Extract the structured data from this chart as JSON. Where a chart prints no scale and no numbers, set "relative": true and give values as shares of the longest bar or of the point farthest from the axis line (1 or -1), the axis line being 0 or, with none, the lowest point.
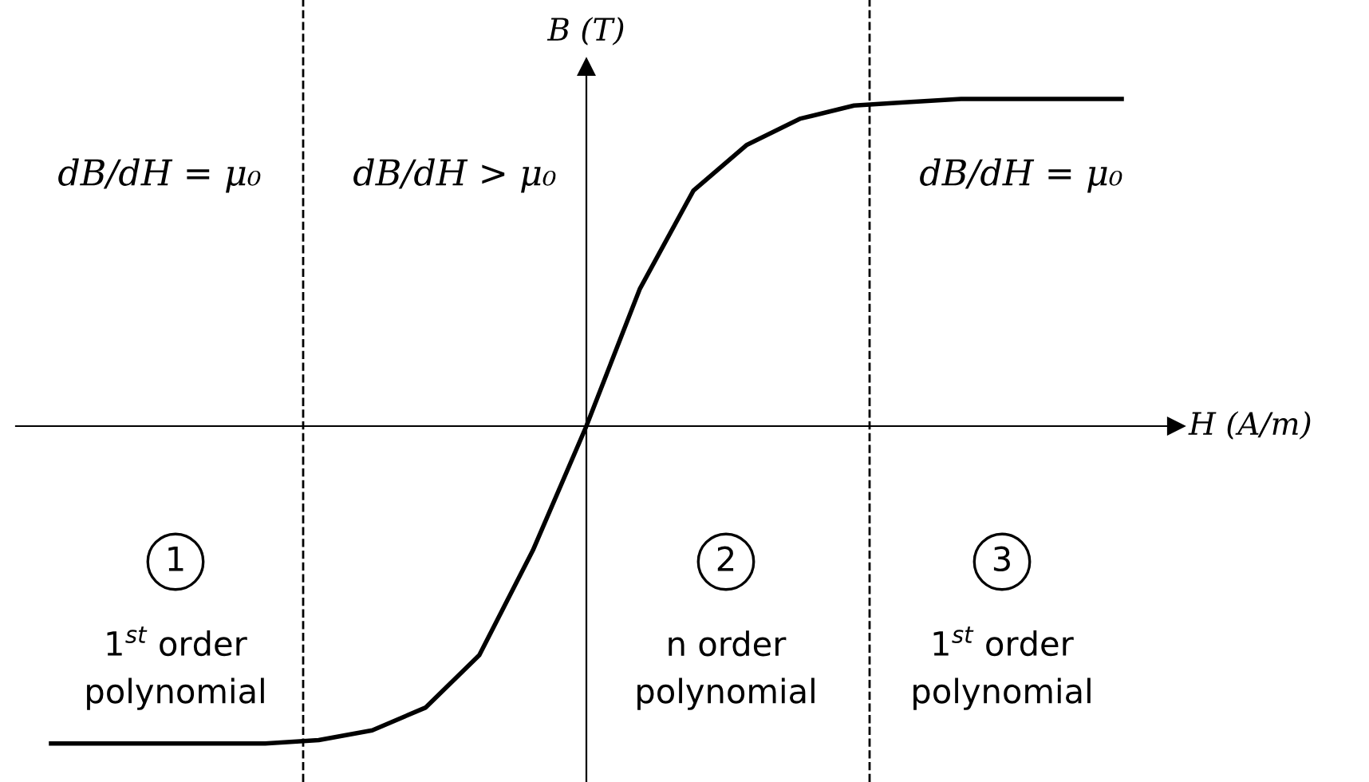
{
  "chart_data": {
    "type": "line",
    "relative": true,
    "xlabel": "H (A/m)",
    "ylabel": "B (T)",
    "marker": "none",
    "line_style": "solid",
    "categories": [
      null,
      null,
      null,
      null,
      null,
      null,
      null,
      null,
      null,
      null,
      null,
      null,
      null,
      null,
      null,
      null,
      null,
      null,
      null,
      null,
      null
    ],
    "series": [
      {
        "color": "#000000",
        "values": [
          -0.97,
          -0.97,
          -0.97,
          -0.97,
          -0.97,
          -0.96,
          -0.93,
          -0.86,
          -0.7,
          -0.38,
          0,
          0.42,
          0.72,
          0.86,
          0.94,
          0.98,
          0.99,
          1,
          1,
          1,
          1
        ]
      }
    ],
    "annotations": [
      "dB/dH = μ₀",
      "dB/dH > μ₀",
      "dB/dH = μ₀",
      "1",
      "2",
      "3",
      "1$^{st}$ order\npolynomial",
      "n order\npolynomial",
      "1$^{st}$ order\npolynomial"
    ]
  }
}
